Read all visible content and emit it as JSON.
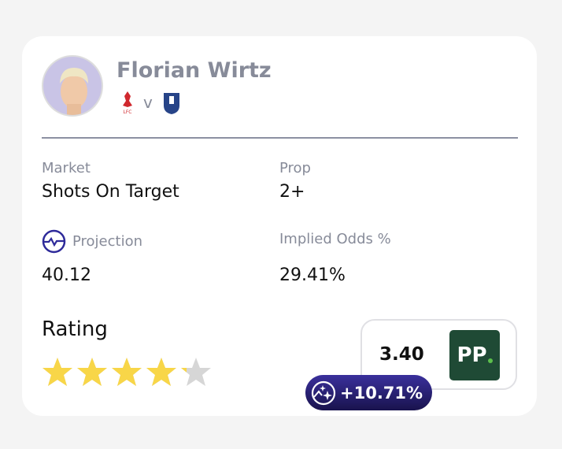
{
  "player": {
    "name": "Florian Wirtz",
    "home_team": "Liverpool",
    "away_team": "Everton",
    "vs": "v"
  },
  "market": {
    "label": "Market",
    "value": "Shots On Target"
  },
  "prop": {
    "label": "Prop",
    "value": "2+"
  },
  "projection": {
    "label": "Projection",
    "value": "40.12"
  },
  "implied": {
    "label": "Implied Odds %",
    "value": "29.41%"
  },
  "rating": {
    "label": "Rating",
    "value": 4.2,
    "max": 5
  },
  "odds": {
    "price": "3.40",
    "bookmaker": "PP"
  },
  "edge": {
    "value": "+10.71%"
  },
  "colors": {
    "accent": "#2e2a9a",
    "star": "#f8d648",
    "star_empty": "#d6d6d6",
    "bookmaker": "#1f4a35"
  }
}
